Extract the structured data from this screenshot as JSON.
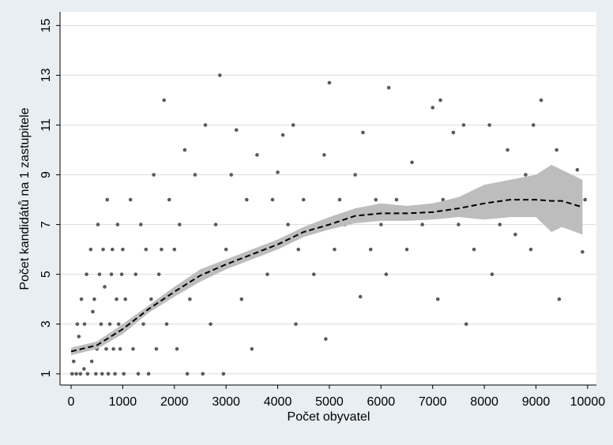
{
  "chart_data": {
    "type": "scatter",
    "x_label": "Počet obyvatel",
    "y_label": "Počet kandidátů na 1 zastupitele",
    "xlim": [
      -214,
      10170
    ],
    "ylim": [
      0.55,
      15.55
    ],
    "xticks": [
      0,
      1000,
      2000,
      3000,
      4000,
      5000,
      6000,
      7000,
      8000,
      9000,
      10000
    ],
    "yticks": [
      1,
      3,
      5,
      7,
      9,
      11,
      13,
      15
    ],
    "grid": true,
    "points": {
      "color": "#5a5a5a",
      "x": [
        20,
        50,
        80,
        100,
        120,
        150,
        180,
        200,
        220,
        250,
        260,
        300,
        320,
        350,
        380,
        400,
        420,
        450,
        480,
        500,
        520,
        550,
        580,
        600,
        620,
        650,
        680,
        700,
        720,
        750,
        780,
        800,
        820,
        850,
        880,
        900,
        920,
        950,
        980,
        1000,
        1020,
        1050,
        1100,
        1150,
        1200,
        1250,
        1300,
        1350,
        1400,
        1450,
        1500,
        1550,
        1600,
        1650,
        1700,
        1750,
        1800,
        1850,
        1900,
        2000,
        2050,
        2100,
        2200,
        2250,
        2300,
        2400,
        2500,
        2550,
        2600,
        2700,
        2800,
        2880,
        2950,
        3000,
        3100,
        3200,
        3300,
        3400,
        3500,
        3600,
        3700,
        3800,
        3900,
        4000,
        4100,
        4200,
        4300,
        4350,
        4400,
        4500,
        4700,
        4800,
        4900,
        4930,
        5000,
        5100,
        5200,
        5300,
        5500,
        5600,
        5650,
        5800,
        5900,
        6000,
        6100,
        6150,
        6300,
        6500,
        6600,
        6800,
        7000,
        7100,
        7150,
        7200,
        7400,
        7500,
        7600,
        7650,
        7800,
        8000,
        8100,
        8150,
        8300,
        8450,
        8600,
        8800,
        8900,
        8950,
        9100,
        9300,
        9400,
        9450,
        9700,
        9800,
        9900,
        9950
      ],
      "y": [
        1,
        1.5,
        2,
        1,
        3,
        2.5,
        1,
        4,
        2,
        1.2,
        3,
        5,
        1,
        2,
        6,
        1.5,
        3.5,
        4,
        1,
        2,
        7,
        5,
        3,
        1,
        6,
        4.5,
        2,
        8,
        1,
        3,
        5,
        6,
        2,
        1,
        4,
        7,
        3,
        2,
        5,
        6,
        1,
        4,
        3,
        8,
        2,
        5,
        1,
        7,
        3,
        6,
        1,
        4,
        9,
        2,
        5,
        6,
        12,
        3,
        8,
        6,
        2,
        7,
        10,
        1,
        4,
        9,
        5,
        1,
        11,
        3,
        7,
        13,
        1,
        6,
        9,
        10.8,
        4,
        8,
        2,
        9.8,
        6,
        5,
        8,
        9.1,
        10.6,
        7,
        11,
        3,
        6,
        8,
        5,
        7,
        9.8,
        2.4,
        12.7,
        6,
        8,
        7,
        9,
        4.1,
        10.7,
        6,
        8,
        7,
        5,
        12.5,
        8,
        6,
        9.5,
        7,
        11.7,
        4,
        12,
        8,
        10.7,
        7,
        11,
        3,
        6,
        8,
        11,
        5,
        7,
        10,
        6.6,
        9,
        6,
        11,
        12,
        7,
        10,
        4,
        7,
        9.2,
        5.9,
        8
      ]
    },
    "fit": {
      "color": "#000000",
      "band_color": "#bdbdbd",
      "x": [
        0,
        500,
        1000,
        1500,
        2000,
        2500,
        3000,
        3500,
        4000,
        4500,
        5000,
        5500,
        6000,
        6500,
        7000,
        7500,
        8000,
        8500,
        9000,
        9300,
        9500,
        9900
      ],
      "y": [
        1.9,
        2.15,
        2.8,
        3.6,
        4.3,
        4.95,
        5.4,
        5.8,
        6.2,
        6.7,
        7.0,
        7.35,
        7.45,
        7.45,
        7.5,
        7.65,
        7.85,
        8.0,
        8.0,
        7.95,
        7.95,
        7.7
      ],
      "lower": [
        1.75,
        2.0,
        2.6,
        3.45,
        4.1,
        4.7,
        5.2,
        5.6,
        6.0,
        6.5,
        6.8,
        7.05,
        7.15,
        7.15,
        7.2,
        7.3,
        7.2,
        7.3,
        7.3,
        6.7,
        6.9,
        6.6
      ],
      "upper": [
        2.05,
        2.3,
        3.0,
        3.75,
        4.5,
        5.2,
        5.6,
        6.0,
        6.4,
        6.9,
        7.3,
        7.65,
        7.85,
        7.75,
        7.85,
        8.1,
        8.6,
        8.8,
        9.0,
        9.4,
        9.2,
        8.8
      ]
    }
  }
}
